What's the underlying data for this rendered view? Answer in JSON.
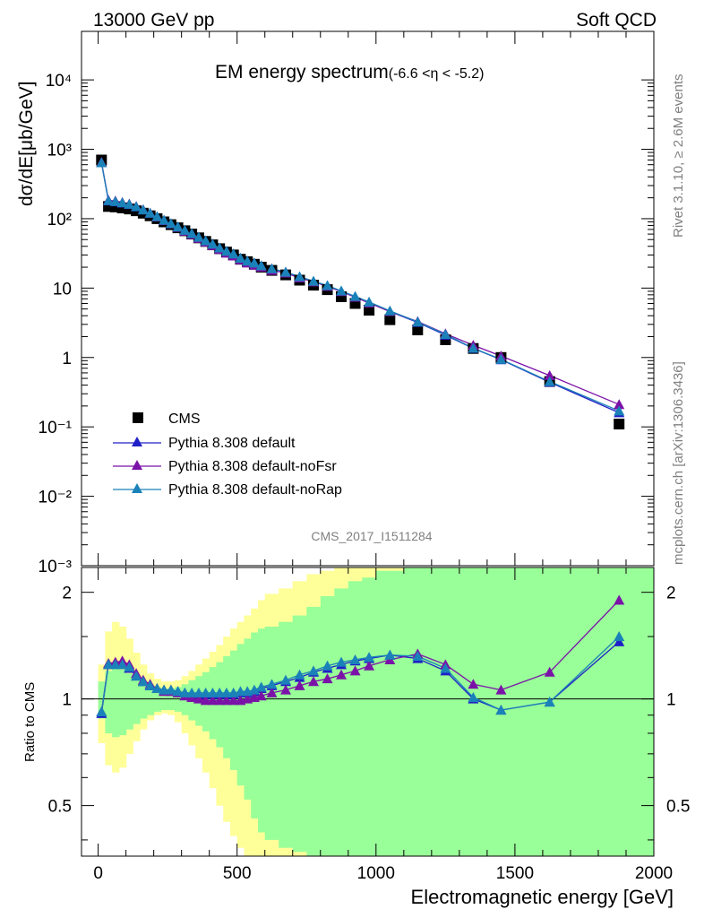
{
  "header": {
    "left": "13000 GeV pp",
    "right": "Soft QCD"
  },
  "side_labels": {
    "rivet": "Rivet 3.1.10, ≥ 2.6M events",
    "mcplots": "mcplots.cern.ch [arXiv:1306.3436]"
  },
  "analysis_tag": "CMS_2017_I1511284",
  "colors": {
    "cms": "#000000",
    "default": "#1f1fc8",
    "noFsr": "#7a12a8",
    "noRap": "#1a82b8",
    "band_inner": "#99ff99",
    "band_outer": "#ffff99"
  },
  "chart_data": [
    {
      "type": "scatter",
      "title": "EM energy spectrum",
      "title_suffix": "(-6.6 <η < -5.2)",
      "xlabel": "",
      "ylabel": "dσ/dE[μb/GeV]",
      "xlim": [
        -60,
        2000
      ],
      "ylim": [
        0.001,
        50000
      ],
      "yscale": "log",
      "yticks": [
        "10⁻³",
        "10⁻²",
        "10⁻¹",
        "1",
        "10",
        "10²",
        "10³",
        "10⁴"
      ],
      "legend": {
        "placement": "bottom-left",
        "entries": [
          "CMS",
          "Pythia 8.308 default",
          "Pythia 8.308 default-noFsr",
          "Pythia 8.308 default-noRap"
        ]
      },
      "series": [
        {
          "name": "CMS",
          "marker": "square",
          "x": [
            12,
            37,
            62,
            87,
            112,
            137,
            162,
            187,
            212,
            237,
            262,
            287,
            312,
            337,
            362,
            387,
            412,
            437,
            462,
            487,
            512,
            537,
            562,
            587,
            625,
            675,
            725,
            775,
            825,
            875,
            925,
            975,
            1050,
            1150,
            1250,
            1350,
            1450,
            1625,
            1875
          ],
          "values": [
            700,
            150,
            148,
            143,
            138,
            130,
            120,
            110,
            100,
            90,
            82,
            74,
            67,
            60,
            53,
            47,
            42,
            37,
            33,
            30,
            26,
            24,
            22,
            20,
            18,
            15.5,
            13,
            11,
            9.5,
            7.5,
            6,
            4.8,
            3.5,
            2.5,
            1.8,
            1.35,
            1.0,
            0.45,
            0.11
          ]
        },
        {
          "name": "Pythia 8.308 default",
          "marker": "triangle",
          "x": [
            12,
            37,
            62,
            87,
            112,
            137,
            162,
            187,
            212,
            237,
            262,
            287,
            312,
            337,
            362,
            387,
            412,
            437,
            462,
            487,
            512,
            537,
            562,
            587,
            625,
            675,
            725,
            775,
            825,
            875,
            925,
            975,
            1050,
            1150,
            1250,
            1350,
            1450,
            1625,
            1875
          ],
          "values": [
            640,
            180,
            175,
            168,
            160,
            148,
            134,
            120,
            107,
            95,
            85,
            76,
            68,
            61,
            54,
            48,
            43,
            38,
            34,
            31,
            27,
            24.5,
            23,
            21,
            19,
            17,
            14.5,
            12.5,
            10.8,
            9,
            7.5,
            6.2,
            4.6,
            3.2,
            2.1,
            1.35,
            0.93,
            0.44,
            0.16
          ]
        },
        {
          "name": "Pythia 8.308 default-noFsr",
          "marker": "triangle",
          "x": [
            12,
            37,
            62,
            87,
            112,
            137,
            162,
            187,
            212,
            237,
            262,
            287,
            312,
            337,
            362,
            387,
            412,
            437,
            462,
            487,
            512,
            537,
            562,
            587,
            625,
            675,
            725,
            775,
            825,
            875,
            925,
            975,
            1050,
            1150,
            1250,
            1350,
            1450,
            1625,
            1875
          ],
          "values": [
            650,
            185,
            180,
            172,
            163,
            150,
            135,
            120,
            106,
            94,
            84,
            75,
            66,
            59,
            52,
            46,
            41,
            36,
            32,
            29,
            25.5,
            23,
            21.5,
            20,
            18,
            16.5,
            14,
            12.3,
            10.6,
            8.9,
            7.4,
            6.1,
            4.6,
            3.3,
            2.2,
            1.5,
            1.05,
            0.55,
            0.21
          ]
        },
        {
          "name": "Pythia 8.308 default-noRap",
          "marker": "triangle",
          "x": [
            12,
            37,
            62,
            87,
            112,
            137,
            162,
            187,
            212,
            237,
            262,
            287,
            312,
            337,
            362,
            387,
            412,
            437,
            462,
            487,
            512,
            537,
            562,
            587,
            625,
            675,
            725,
            775,
            825,
            875,
            925,
            975,
            1050,
            1150,
            1250,
            1350,
            1450,
            1625,
            1875
          ],
          "values": [
            640,
            182,
            177,
            170,
            161,
            149,
            134,
            120,
            107,
            95,
            85,
            76,
            68,
            61,
            54,
            48,
            43,
            38,
            34,
            31,
            27,
            24.5,
            23,
            21,
            19,
            17,
            14.6,
            12.6,
            10.9,
            9.1,
            7.6,
            6.3,
            4.7,
            3.25,
            2.15,
            1.36,
            0.94,
            0.45,
            0.17
          ]
        }
      ]
    },
    {
      "type": "line",
      "xlabel": "Electromagnetic energy [GeV]",
      "ylabel": "Ratio to CMS",
      "xlim": [
        -60,
        2000
      ],
      "ylim": [
        0.36,
        2.35
      ],
      "yscale": "log",
      "yticks": [
        0.5,
        1,
        2
      ],
      "xticks": [
        0,
        500,
        1000,
        1500,
        2000
      ],
      "reference_line": 1,
      "bands": {
        "edges": [
          0,
          25,
          50,
          75,
          100,
          125,
          150,
          175,
          200,
          225,
          250,
          275,
          300,
          325,
          350,
          375,
          400,
          425,
          450,
          475,
          500,
          525,
          550,
          575,
          600,
          650,
          700,
          750,
          800,
          850,
          900,
          950,
          1000,
          1100,
          1200,
          1300,
          1400,
          1500,
          1750,
          2000
        ],
        "inner_lo": [
          0.88,
          0.8,
          0.78,
          0.79,
          0.82,
          0.85,
          0.88,
          0.9,
          0.92,
          0.93,
          0.93,
          0.92,
          0.9,
          0.87,
          0.84,
          0.81,
          0.77,
          0.73,
          0.68,
          0.63,
          0.57,
          0.52,
          0.46,
          0.42,
          0.4,
          0.38,
          0.37,
          0.36,
          0.36,
          0.36,
          0.36,
          0.36,
          0.36,
          0.36,
          0.36,
          0.36,
          0.36,
          0.36,
          0.36
        ],
        "inner_hi": [
          1.12,
          1.2,
          1.22,
          1.21,
          1.18,
          1.15,
          1.12,
          1.1,
          1.08,
          1.07,
          1.07,
          1.08,
          1.1,
          1.13,
          1.16,
          1.19,
          1.23,
          1.27,
          1.32,
          1.37,
          1.43,
          1.48,
          1.54,
          1.58,
          1.6,
          1.65,
          1.72,
          1.82,
          1.95,
          2.05,
          2.15,
          2.2,
          2.3,
          2.35,
          2.35,
          2.35,
          2.35,
          2.35,
          2.35
        ],
        "outer_lo": [
          0.75,
          0.65,
          0.62,
          0.64,
          0.7,
          0.76,
          0.82,
          0.87,
          0.9,
          0.91,
          0.9,
          0.86,
          0.8,
          0.74,
          0.68,
          0.62,
          0.56,
          0.5,
          0.45,
          0.41,
          0.38,
          0.36,
          0.36,
          0.36,
          0.36,
          0.36,
          0.36,
          0.36,
          0.36,
          0.36,
          0.36,
          0.36,
          0.36,
          0.36,
          0.36,
          0.36,
          0.36,
          0.36,
          0.36
        ],
        "outer_hi": [
          1.25,
          1.55,
          1.65,
          1.6,
          1.48,
          1.35,
          1.25,
          1.18,
          1.14,
          1.12,
          1.12,
          1.13,
          1.16,
          1.2,
          1.25,
          1.3,
          1.36,
          1.42,
          1.5,
          1.58,
          1.65,
          1.72,
          1.8,
          1.9,
          1.98,
          2.05,
          2.15,
          2.25,
          2.3,
          2.35,
          2.35,
          2.35,
          2.35,
          2.35,
          2.35,
          2.35,
          2.35,
          2.35,
          2.35
        ]
      },
      "series": [
        {
          "name": "Pythia 8.308 default",
          "x": [
            12,
            37,
            62,
            87,
            112,
            137,
            162,
            187,
            212,
            237,
            262,
            287,
            312,
            337,
            362,
            387,
            412,
            437,
            462,
            487,
            512,
            537,
            562,
            587,
            625,
            675,
            725,
            775,
            825,
            875,
            925,
            975,
            1050,
            1150,
            1250,
            1350,
            1450,
            1625,
            1875
          ],
          "values": [
            0.91,
            1.25,
            1.26,
            1.25,
            1.22,
            1.16,
            1.12,
            1.09,
            1.07,
            1.06,
            1.06,
            1.05,
            1.04,
            1.03,
            1.03,
            1.03,
            1.03,
            1.03,
            1.03,
            1.03,
            1.04,
            1.04,
            1.05,
            1.07,
            1.09,
            1.12,
            1.15,
            1.19,
            1.22,
            1.25,
            1.28,
            1.3,
            1.33,
            1.3,
            1.2,
            1.0,
            0.93,
            0.98,
            1.45
          ]
        },
        {
          "name": "Pythia 8.308 default-noFsr",
          "x": [
            12,
            37,
            62,
            87,
            112,
            137,
            162,
            187,
            212,
            237,
            262,
            287,
            312,
            337,
            362,
            387,
            412,
            437,
            462,
            487,
            512,
            537,
            562,
            587,
            625,
            675,
            725,
            775,
            825,
            875,
            925,
            975,
            1050,
            1150,
            1250,
            1350,
            1450,
            1625,
            1875
          ],
          "values": [
            0.92,
            1.26,
            1.27,
            1.28,
            1.25,
            1.18,
            1.13,
            1.1,
            1.07,
            1.05,
            1.05,
            1.04,
            1.02,
            1.01,
            1.0,
            0.99,
            0.99,
            0.99,
            0.99,
            0.99,
            0.99,
            1.0,
            1.01,
            1.02,
            1.04,
            1.06,
            1.09,
            1.12,
            1.14,
            1.17,
            1.2,
            1.24,
            1.29,
            1.34,
            1.25,
            1.1,
            1.06,
            1.19,
            1.9
          ]
        },
        {
          "name": "Pythia 8.308 default-noRap",
          "x": [
            12,
            37,
            62,
            87,
            112,
            137,
            162,
            187,
            212,
            237,
            262,
            287,
            312,
            337,
            362,
            387,
            412,
            437,
            462,
            487,
            512,
            537,
            562,
            587,
            625,
            675,
            725,
            775,
            825,
            875,
            925,
            975,
            1050,
            1150,
            1250,
            1350,
            1450,
            1625,
            1875
          ],
          "values": [
            0.92,
            1.25,
            1.25,
            1.25,
            1.23,
            1.16,
            1.12,
            1.09,
            1.07,
            1.06,
            1.06,
            1.05,
            1.04,
            1.04,
            1.04,
            1.04,
            1.04,
            1.04,
            1.04,
            1.04,
            1.05,
            1.05,
            1.06,
            1.08,
            1.1,
            1.13,
            1.17,
            1.2,
            1.24,
            1.27,
            1.29,
            1.31,
            1.33,
            1.32,
            1.22,
            1.01,
            0.93,
            0.98,
            1.5
          ]
        }
      ]
    }
  ]
}
